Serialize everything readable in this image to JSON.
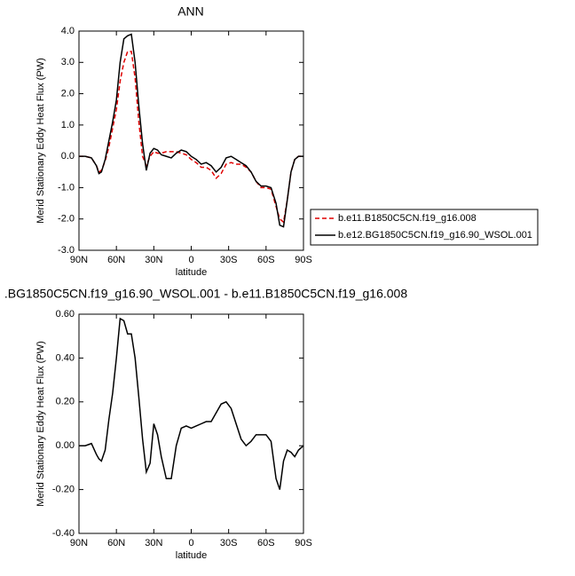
{
  "chart_data": [
    {
      "type": "line",
      "title": "ANN",
      "xlabel": "latitude",
      "ylabel": "Merid Stationary Eddy Heat Flux (PW)",
      "x": [
        90,
        85,
        80,
        76,
        74,
        72,
        69,
        66,
        63,
        60,
        57,
        54,
        51,
        48,
        45,
        42,
        39,
        36,
        33,
        30,
        27,
        24,
        20,
        16,
        12,
        8,
        4,
        0,
        -4,
        -8,
        -12,
        -16,
        -20,
        -24,
        -28,
        -32,
        -36,
        -40,
        -44,
        -48,
        -52,
        -56,
        -60,
        -64,
        -68,
        -71,
        -74,
        -77,
        -80,
        -83,
        -86,
        -90
      ],
      "series": [
        {
          "name": "b.e11.B1850C5CN.f19_g16.008",
          "color": "#e00000",
          "dash": "dashed",
          "values": [
            0,
            0,
            -0.05,
            -0.3,
            -0.5,
            -0.45,
            -0.15,
            0.3,
            0.9,
            1.5,
            2.4,
            3.0,
            3.35,
            3.35,
            2.5,
            1.1,
            0.0,
            -0.3,
            0.0,
            0.15,
            0.1,
            0.1,
            0.15,
            0.15,
            0.15,
            0.1,
            0.05,
            -0.1,
            -0.2,
            -0.35,
            -0.35,
            -0.45,
            -0.7,
            -0.55,
            -0.25,
            -0.2,
            -0.25,
            -0.25,
            -0.35,
            -0.5,
            -0.8,
            -1.0,
            -1.0,
            -1.05,
            -1.6,
            -2.0,
            -2.1,
            -1.4,
            -0.5,
            -0.1,
            0,
            0
          ]
        },
        {
          "name": "b.e12.BG1850C5CN.f19_g16.90_WSOL.001",
          "color": "#000000",
          "dash": "solid",
          "values": [
            0,
            0,
            -0.05,
            -0.3,
            -0.55,
            -0.5,
            -0.1,
            0.5,
            1.1,
            1.8,
            3.0,
            3.75,
            3.85,
            3.9,
            3.0,
            1.6,
            0.4,
            -0.45,
            0.1,
            0.25,
            0.2,
            0.05,
            0.0,
            -0.05,
            0.1,
            0.2,
            0.15,
            0.0,
            -0.1,
            -0.25,
            -0.2,
            -0.3,
            -0.5,
            -0.35,
            -0.05,
            0.0,
            -0.1,
            -0.2,
            -0.3,
            -0.5,
            -0.8,
            -0.95,
            -0.95,
            -1.0,
            -1.5,
            -2.2,
            -2.25,
            -1.4,
            -0.5,
            -0.1,
            0,
            0
          ]
        }
      ],
      "xlim": [
        90,
        -90
      ],
      "xticks": [
        {
          "value": 90,
          "label": "90N"
        },
        {
          "value": 60,
          "label": "60N"
        },
        {
          "value": 30,
          "label": "30N"
        },
        0,
        {
          "value": -30,
          "label": "30S"
        },
        {
          "value": -60,
          "label": "60S"
        },
        {
          "value": -90,
          "label": "90S"
        }
      ],
      "ylim": [
        -3,
        4
      ],
      "yticks": [
        {
          "value": -3,
          "label": "-3.0"
        },
        {
          "value": -2,
          "label": "-2.0"
        },
        {
          "value": -1,
          "label": "-1.0"
        },
        {
          "value": 0,
          "label": "0.0"
        },
        {
          "value": 1,
          "label": "1.0"
        },
        {
          "value": 2,
          "label": "2.0"
        },
        {
          "value": 3,
          "label": "3.0"
        },
        {
          "value": 4,
          "label": "4.0"
        }
      ],
      "legend": "right"
    },
    {
      "type": "line",
      "title": ".BG1850C5CN.f19_g16.90_WSOL.001 - b.e11.B1850C5CN.f19_g16.008",
      "xlabel": "latitude",
      "ylabel": "Merid Stationary Eddy Heat Flux (PW)",
      "x": [
        90,
        85,
        80,
        76,
        74,
        72,
        69,
        66,
        63,
        60,
        57,
        54,
        51,
        48,
        45,
        42,
        39,
        36,
        33,
        30,
        27,
        24,
        20,
        16,
        12,
        8,
        4,
        0,
        -4,
        -8,
        -12,
        -16,
        -20,
        -24,
        -28,
        -32,
        -36,
        -40,
        -44,
        -48,
        -52,
        -56,
        -60,
        -64,
        -68,
        -71,
        -74,
        -77,
        -80,
        -83,
        -86,
        -90
      ],
      "series": [
        {
          "color": "#000000",
          "dash": "solid",
          "values": [
            0,
            0.0,
            0.01,
            -0.04,
            -0.06,
            -0.07,
            -0.02,
            0.12,
            0.24,
            0.4,
            0.58,
            0.57,
            0.51,
            0.51,
            0.4,
            0.22,
            0.03,
            -0.12,
            -0.08,
            0.1,
            0.05,
            -0.05,
            -0.15,
            -0.15,
            0.0,
            0.08,
            0.09,
            0.08,
            0.09,
            0.1,
            0.11,
            0.11,
            0.15,
            0.19,
            0.2,
            0.17,
            0.1,
            0.03,
            0.0,
            0.02,
            0.05,
            0.05,
            0.05,
            0.02,
            -0.15,
            -0.2,
            -0.07,
            -0.02,
            -0.03,
            -0.05,
            -0.02,
            0
          ]
        }
      ],
      "xlim": [
        90,
        -90
      ],
      "xticks": [
        {
          "value": 90,
          "label": "90N"
        },
        {
          "value": 60,
          "label": "60N"
        },
        {
          "value": 30,
          "label": "30N"
        },
        0,
        {
          "value": -30,
          "label": "30S"
        },
        {
          "value": -60,
          "label": "60S"
        },
        {
          "value": -90,
          "label": "90S"
        }
      ],
      "ylim": [
        -0.4,
        0.6
      ],
      "yticks": [
        {
          "value": -0.4,
          "label": "-0.40"
        },
        {
          "value": -0.2,
          "label": "-0.20"
        },
        {
          "value": 0,
          "label": "0.00"
        },
        {
          "value": 0.2,
          "label": "0.20"
        },
        {
          "value": 0.4,
          "label": "0.40"
        },
        {
          "value": 0.6,
          "label": "0.60"
        }
      ]
    }
  ]
}
